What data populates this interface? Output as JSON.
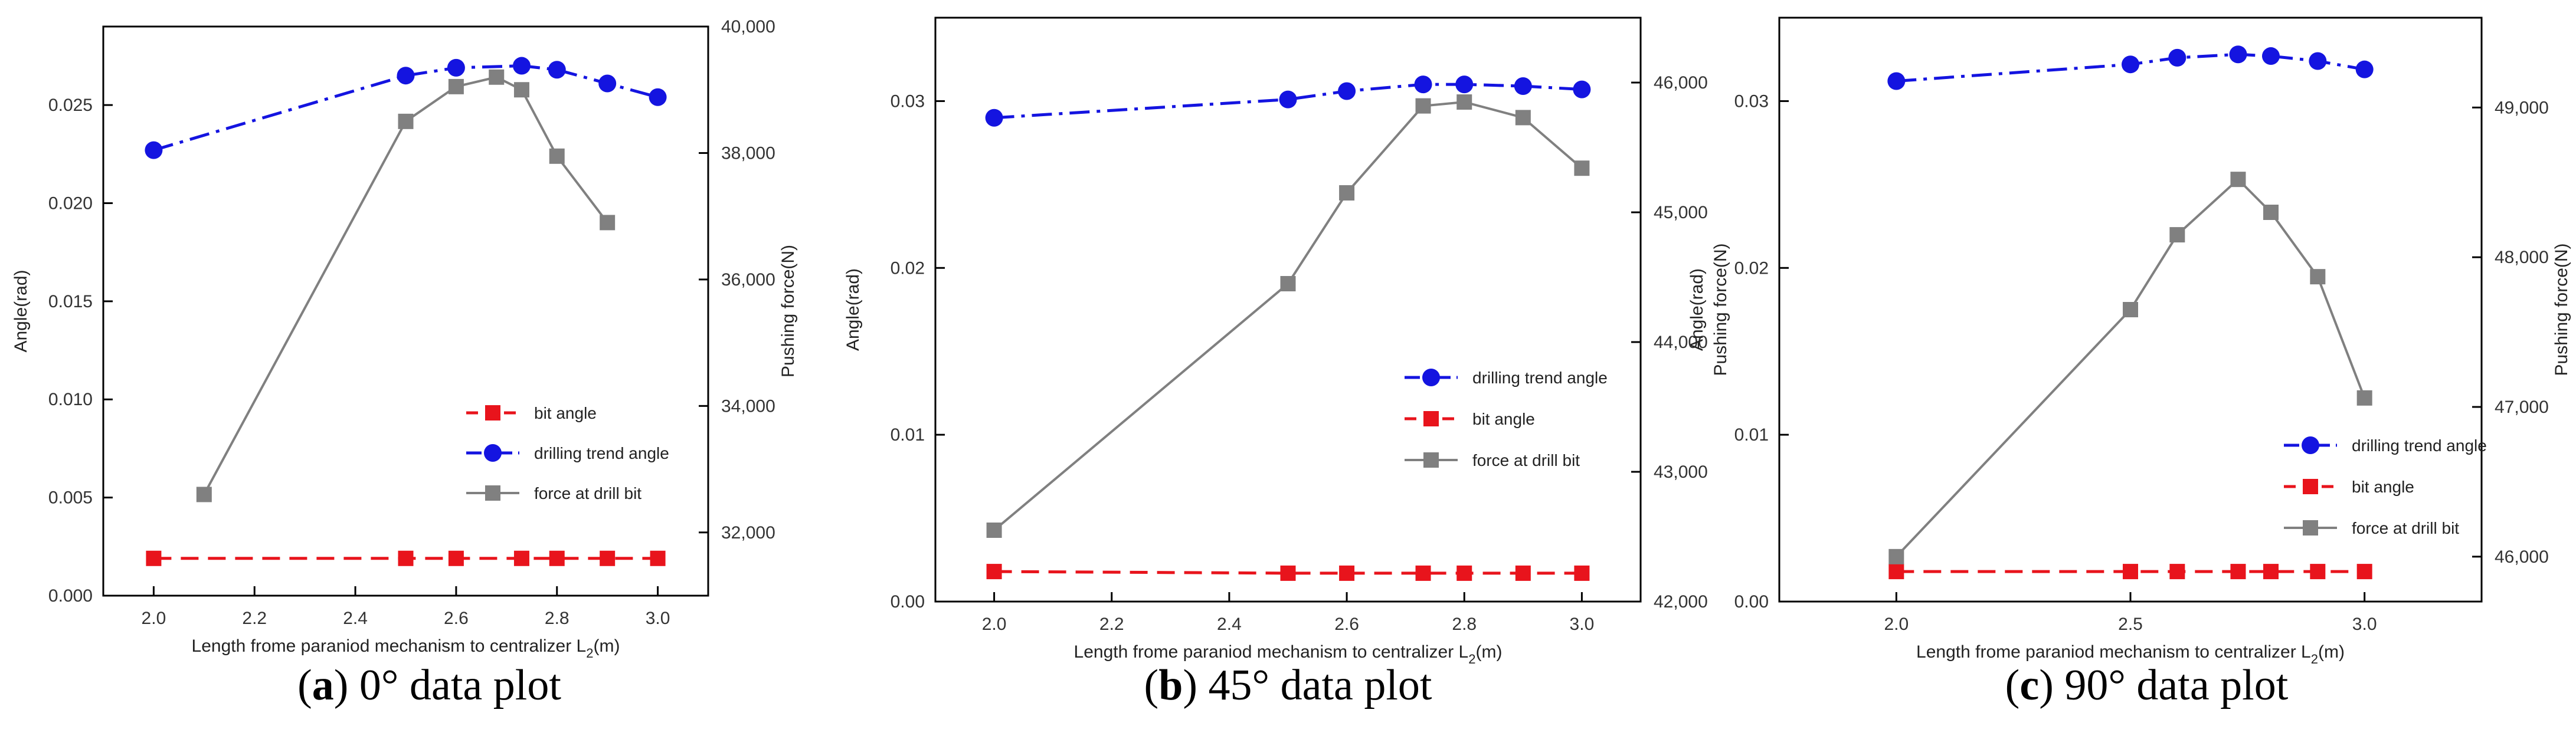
{
  "chart_data": [
    {
      "type": "line",
      "panel_label": "a",
      "caption": "0° data plot",
      "xlabel": "Length frome paraniod mechanism to centralizer L",
      "xlabel_sub": "2",
      "xlabel_unit": "(m)",
      "ylabel_left": "Angle(rad)",
      "ylabel_right": "Pushing force(N)",
      "xlim": [
        1.9,
        3.1
      ],
      "ylim_left": [
        0,
        0.029
      ],
      "ylim_right": [
        31000,
        40000
      ],
      "xticks": [
        2.0,
        2.2,
        2.4,
        2.6,
        2.8,
        3.0
      ],
      "xtick_labels": [
        "2.0",
        "2.2",
        "2.4",
        "2.6",
        "2.8",
        "3.0"
      ],
      "yticks_left": [
        0,
        0.005,
        0.01,
        0.015,
        0.02,
        0.025
      ],
      "ytick_labels_left": [
        "0.000",
        "0.005",
        "0.010",
        "0.015",
        "0.020",
        "0.025"
      ],
      "yticks_right": [
        32000,
        34000,
        36000,
        38000,
        40000
      ],
      "ytick_labels_right": [
        "32,000",
        "34,000",
        "36,000",
        "38,000",
        "40,000"
      ],
      "series": [
        {
          "name": "bit angle",
          "axis": "left",
          "color": "#e8141c",
          "marker": "square",
          "dash": "dash",
          "x": [
            2.0,
            2.5,
            2.6,
            2.73,
            2.8,
            2.9,
            3.0
          ],
          "values": [
            0.0019,
            0.0019,
            0.0019,
            0.0019,
            0.0019,
            0.0019,
            0.0019
          ]
        },
        {
          "name": "drilling trend angle",
          "axis": "left",
          "color": "#1414e0",
          "marker": "circle",
          "dash": "dashdot",
          "x": [
            2.0,
            2.5,
            2.6,
            2.73,
            2.8,
            2.9,
            3.0
          ],
          "values": [
            0.0227,
            0.0265,
            0.0269,
            0.027,
            0.0268,
            0.0261,
            0.0254
          ]
        },
        {
          "name": "force at drill bit",
          "axis": "right",
          "color": "#808080",
          "marker": "square",
          "dash": "solid",
          "x": [
            2.1,
            2.5,
            2.6,
            2.68,
            2.73,
            2.8,
            2.9
          ],
          "values": [
            32600,
            38500,
            39050,
            39200,
            39000,
            37950,
            36900
          ]
        }
      ],
      "legend_order": [
        "bit angle",
        "drilling trend angle",
        "force at drill bit"
      ],
      "legend_position": "lower-right"
    },
    {
      "type": "line",
      "panel_label": "b",
      "caption": "45° data plot",
      "xlabel": "Length frome paraniod mechanism to centralizer L",
      "xlabel_sub": "2",
      "xlabel_unit": "(m)",
      "ylabel_left": "Angle(rad)",
      "ylabel_right": "Pushing force(N)",
      "xlim": [
        1.9,
        3.1
      ],
      "ylim_left": [
        0,
        0.035
      ],
      "ylim_right": [
        42000,
        46500
      ],
      "xticks": [
        2.0,
        2.2,
        2.4,
        2.6,
        2.8,
        3.0
      ],
      "xtick_labels": [
        "2.0",
        "2.2",
        "2.4",
        "2.6",
        "2.8",
        "3.0"
      ],
      "yticks_left": [
        0,
        0.01,
        0.02,
        0.03
      ],
      "ytick_labels_left": [
        "0.00",
        "0.01",
        "0.02",
        "0.03"
      ],
      "yticks_right": [
        42000,
        43000,
        44000,
        45000,
        46000
      ],
      "ytick_labels_right": [
        "42,000",
        "43,000",
        "44,000",
        "45,000",
        "46,000"
      ],
      "series": [
        {
          "name": "drilling trend angle",
          "axis": "left",
          "color": "#1414e0",
          "marker": "circle",
          "dash": "dashdot",
          "x": [
            2.0,
            2.5,
            2.6,
            2.73,
            2.8,
            2.9,
            3.0
          ],
          "values": [
            0.029,
            0.0301,
            0.0306,
            0.031,
            0.031,
            0.0309,
            0.0307
          ]
        },
        {
          "name": "bit angle",
          "axis": "left",
          "color": "#e8141c",
          "marker": "square",
          "dash": "dash",
          "x": [
            2.0,
            2.5,
            2.6,
            2.73,
            2.8,
            2.9,
            3.0
          ],
          "values": [
            0.0018,
            0.0017,
            0.0017,
            0.0017,
            0.0017,
            0.0017,
            0.0017
          ]
        },
        {
          "name": "force at drill bit",
          "axis": "right",
          "color": "#808080",
          "marker": "square",
          "dash": "solid",
          "x": [
            2.0,
            2.5,
            2.6,
            2.73,
            2.8,
            2.9,
            3.0
          ],
          "values": [
            42550,
            44450,
            45150,
            45820,
            45850,
            45730,
            45340
          ]
        }
      ],
      "legend_order": [
        "drilling trend angle",
        "bit angle",
        "force at drill bit"
      ],
      "legend_position": "lower-right"
    },
    {
      "type": "line",
      "panel_label": "c",
      "caption": "90° data plot",
      "xlabel": "Length frome paraniod mechanism to centralizer L",
      "xlabel_sub": "2",
      "xlabel_unit": "(m)",
      "ylabel_left": "Angle(rad)",
      "ylabel_right": "Pushing force(N)",
      "xlim": [
        1.75,
        3.25
      ],
      "ylim_left": [
        0,
        0.035
      ],
      "ylim_right": [
        45700,
        49600
      ],
      "xticks": [
        2.0,
        2.5,
        3.0
      ],
      "xtick_labels": [
        "2.0",
        "2.5",
        "3.0"
      ],
      "yticks_left": [
        0,
        0.01,
        0.02,
        0.03
      ],
      "ytick_labels_left": [
        "0.00",
        "0.01",
        "0.02",
        "0.03"
      ],
      "yticks_right": [
        46000,
        47000,
        48000,
        49000
      ],
      "ytick_labels_right": [
        "46,000",
        "47,000",
        "48,000",
        "49,000"
      ],
      "series": [
        {
          "name": "drilling trend angle",
          "axis": "left",
          "color": "#1414e0",
          "marker": "circle",
          "dash": "dashdot",
          "x": [
            2.0,
            2.5,
            2.6,
            2.73,
            2.8,
            2.9,
            3.0
          ],
          "values": [
            0.0312,
            0.0322,
            0.0326,
            0.0328,
            0.0327,
            0.0324,
            0.0319
          ]
        },
        {
          "name": "bit angle",
          "axis": "left",
          "color": "#e8141c",
          "marker": "square",
          "dash": "dash",
          "x": [
            2.0,
            2.5,
            2.6,
            2.73,
            2.8,
            2.9,
            3.0
          ],
          "values": [
            0.0018,
            0.0018,
            0.0018,
            0.0018,
            0.0018,
            0.0018,
            0.0018
          ]
        },
        {
          "name": "force at drill bit",
          "axis": "right",
          "color": "#808080",
          "marker": "square",
          "dash": "solid",
          "x": [
            2.0,
            2.5,
            2.6,
            2.73,
            2.8,
            2.9,
            3.0
          ],
          "values": [
            46000,
            47650,
            48150,
            48520,
            48300,
            47870,
            47060
          ]
        }
      ],
      "legend_order": [
        "drilling trend angle",
        "bit angle",
        "force at drill bit"
      ],
      "legend_position": "lower-right"
    }
  ]
}
